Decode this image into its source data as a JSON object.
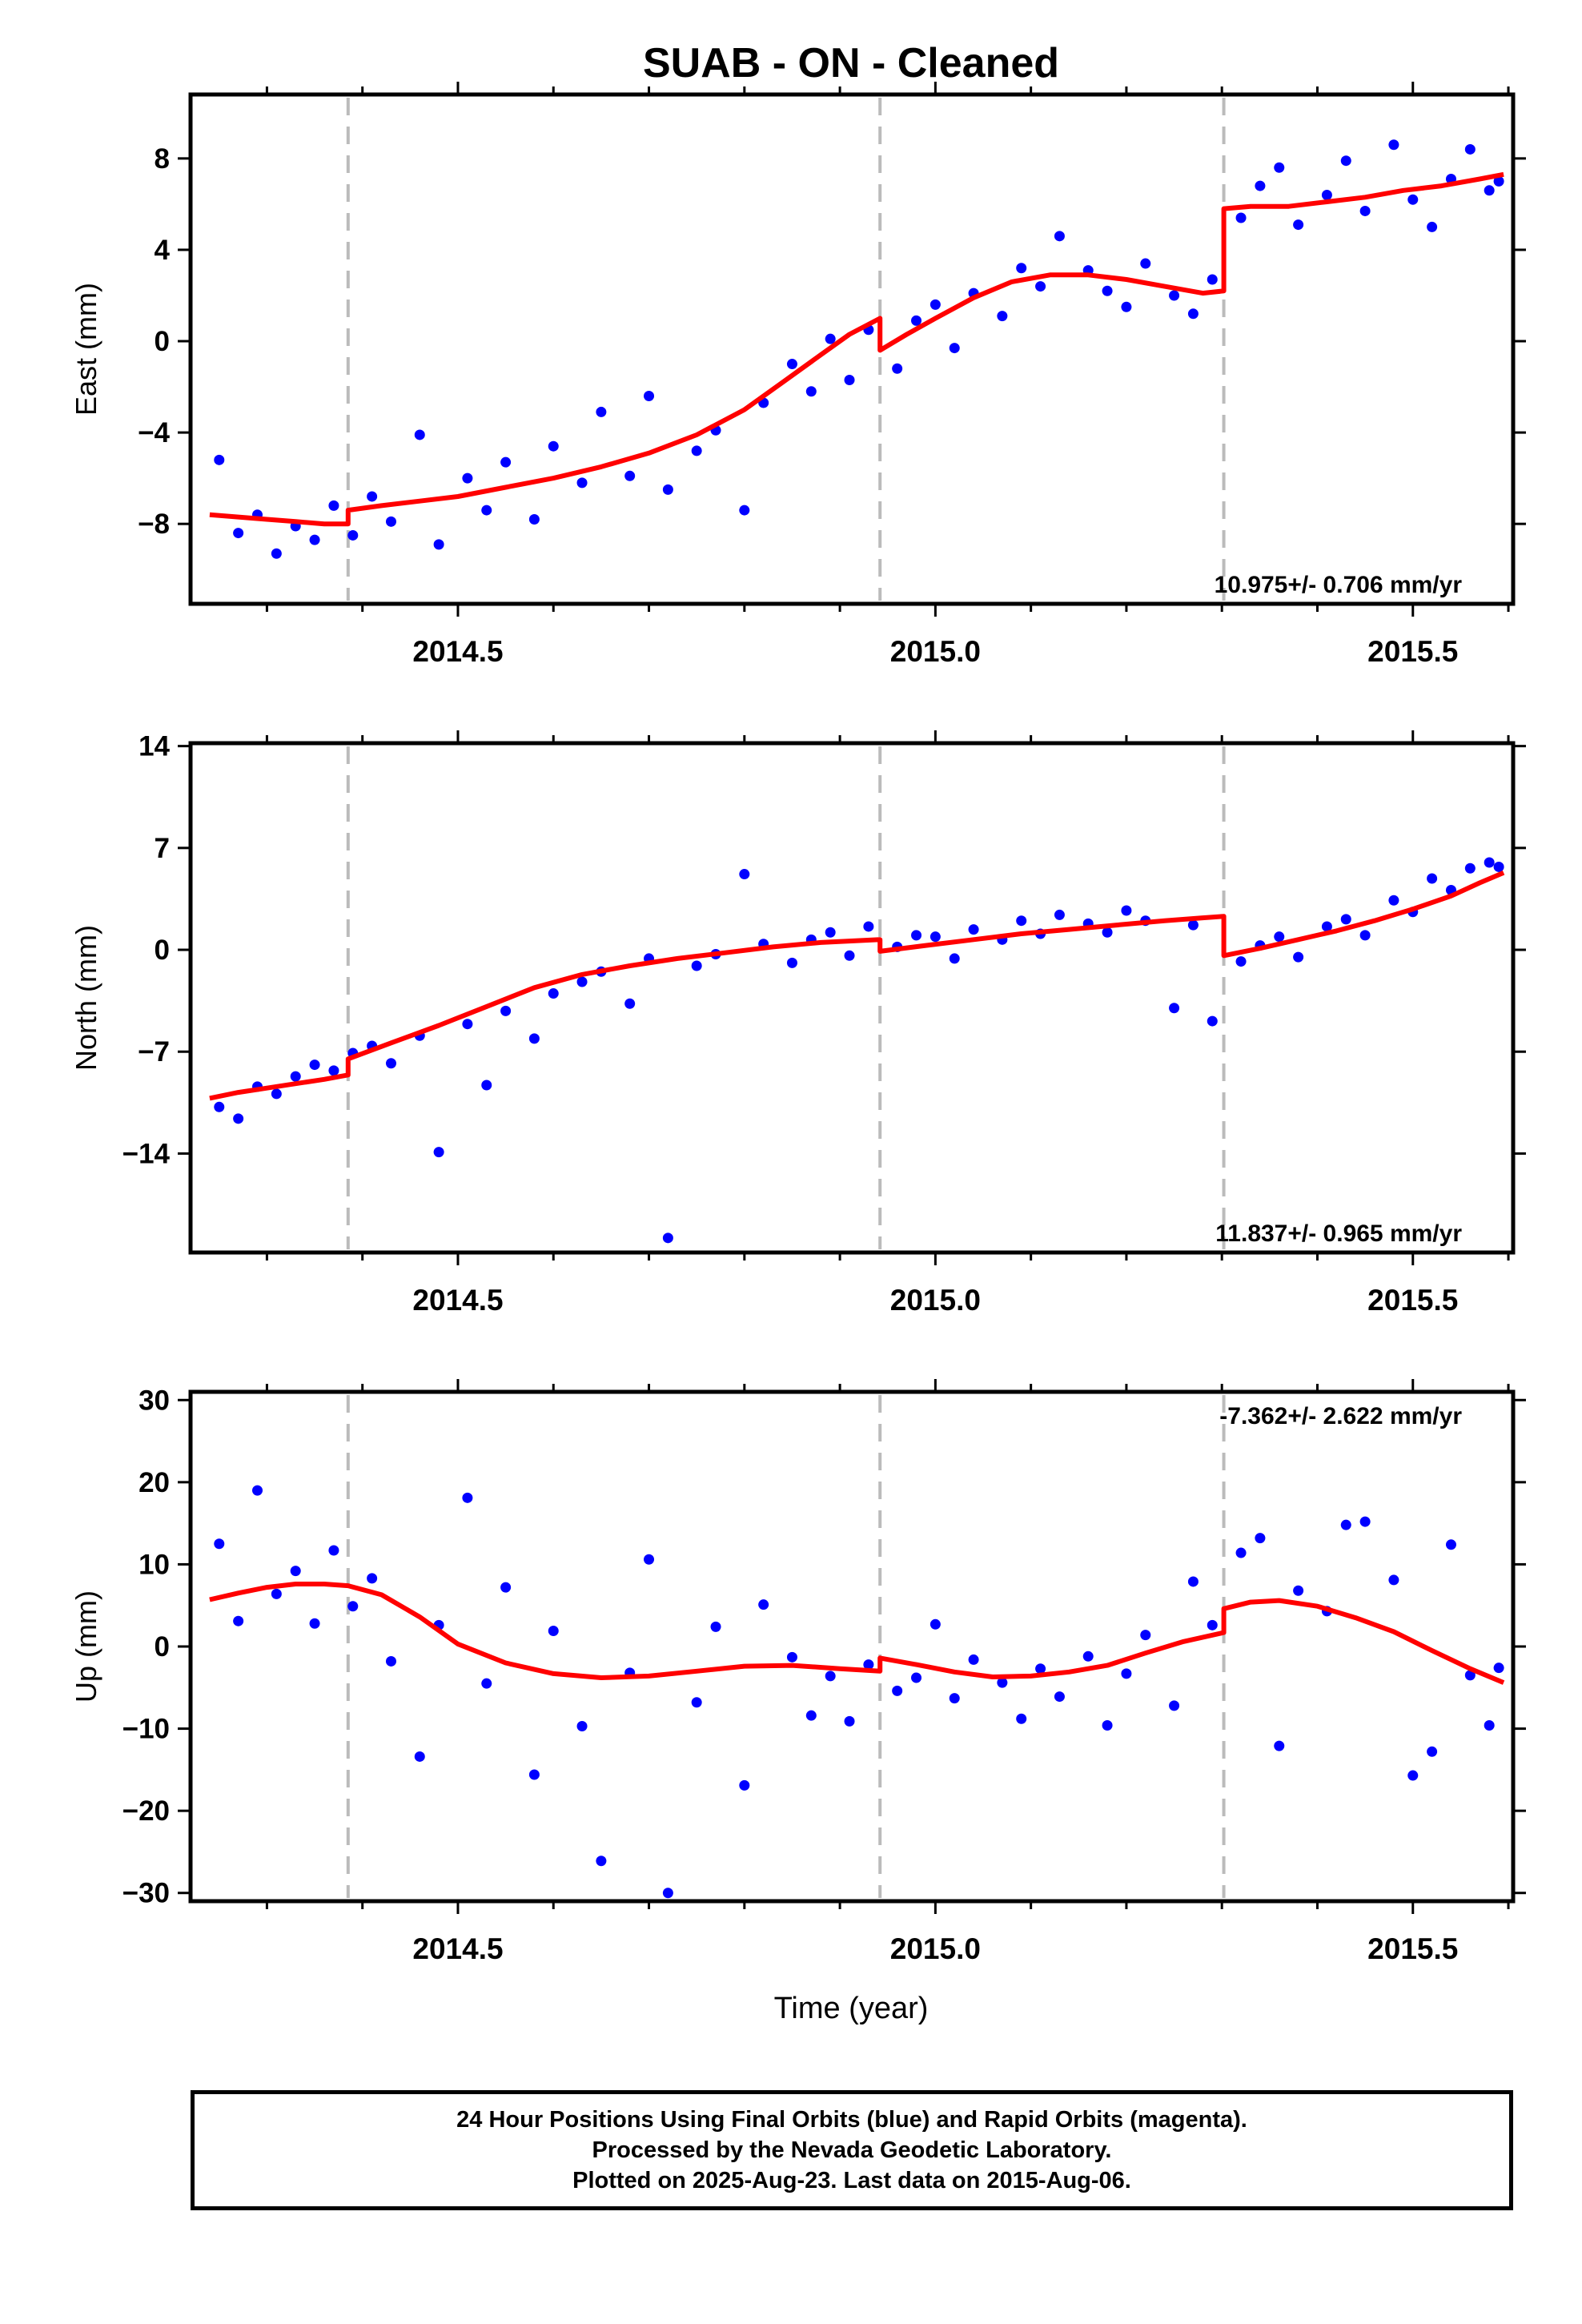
{
  "colors": {
    "final_orbits": "#0000ff",
    "model": "#ff0000",
    "event": "#bbbbbb",
    "frame": "#000000"
  },
  "chart_data": [
    {
      "type": "scatter",
      "title": "SUAB  - ON - Cleaned",
      "xlabel": "",
      "ylabel": "East (mm)",
      "xlim": [
        2014.22,
        2015.605
      ],
      "ylim": [
        -11.5,
        10.8
      ],
      "yticks": [
        -8,
        -4,
        0,
        4,
        8
      ],
      "xticks": [
        2014.5,
        2015.0,
        2015.5
      ],
      "xtick_labels": [
        "2014.5",
        "2015.0",
        "2015.5"
      ],
      "annotation": "10.975+/- 0.706 mm/yr",
      "event_lines": [
        2014.385,
        2014.942,
        2015.302
      ],
      "grid": false,
      "series": [
        {
          "kind": "points",
          "x": [
            2014.25,
            2014.27,
            2014.29,
            2014.31,
            2014.33,
            2014.35,
            2014.37,
            2014.39,
            2014.41,
            2014.43,
            2014.46,
            2014.48,
            2014.51,
            2014.53,
            2014.55,
            2014.58,
            2014.6,
            2014.63,
            2014.65,
            2014.68,
            2014.7,
            2014.72,
            2014.75,
            2014.77,
            2014.8,
            2014.82,
            2014.85,
            2014.87,
            2014.89,
            2014.91,
            2014.93,
            2014.96,
            2014.98,
            2015.0,
            2015.02,
            2015.04,
            2015.07,
            2015.09,
            2015.11,
            2015.13,
            2015.16,
            2015.18,
            2015.2,
            2015.22,
            2015.25,
            2015.27,
            2015.29,
            2015.32,
            2015.34,
            2015.36,
            2015.38,
            2015.41,
            2015.43,
            2015.45,
            2015.48,
            2015.5,
            2015.52,
            2015.54,
            2015.56,
            2015.58,
            2015.59
          ],
          "y": [
            -5.2,
            -8.4,
            -7.6,
            -9.3,
            -8.1,
            -8.7,
            -7.2,
            -8.5,
            -6.8,
            -7.9,
            -4.1,
            -8.9,
            -6.0,
            -7.4,
            -5.3,
            -7.8,
            -4.6,
            -6.2,
            -3.1,
            -5.9,
            -2.4,
            -6.5,
            -4.8,
            -3.9,
            -7.4,
            -2.7,
            -1.0,
            -2.2,
            0.1,
            -1.7,
            0.5,
            -1.2,
            0.9,
            1.6,
            -0.3,
            2.1,
            1.1,
            3.2,
            2.4,
            4.6,
            3.1,
            2.2,
            1.5,
            3.4,
            2.0,
            1.2,
            2.7,
            5.4,
            6.8,
            7.6,
            5.1,
            6.4,
            7.9,
            5.7,
            8.6,
            6.2,
            5.0,
            7.1,
            8.4,
            6.6,
            7.0
          ]
        },
        {
          "kind": "model",
          "x": [
            2014.24,
            2014.27,
            2014.3,
            2014.33,
            2014.36,
            2014.385,
            2014.385,
            2014.42,
            2014.46,
            2014.5,
            2014.55,
            2014.6,
            2014.65,
            2014.7,
            2014.75,
            2014.8,
            2014.84,
            2014.88,
            2014.91,
            2014.942,
            2014.942,
            2014.97,
            2015.0,
            2015.04,
            2015.08,
            2015.12,
            2015.16,
            2015.2,
            2015.24,
            2015.28,
            2015.302,
            2015.302,
            2015.33,
            2015.37,
            2015.41,
            2015.45,
            2015.49,
            2015.53,
            2015.57,
            2015.595
          ],
          "y": [
            -7.6,
            -7.7,
            -7.8,
            -7.9,
            -8.0,
            -8.0,
            -7.4,
            -7.2,
            -7.0,
            -6.8,
            -6.4,
            -6.0,
            -5.5,
            -4.9,
            -4.1,
            -3.0,
            -1.8,
            -0.6,
            0.3,
            1.0,
            -0.4,
            0.3,
            1.0,
            1.9,
            2.6,
            2.9,
            2.9,
            2.7,
            2.4,
            2.1,
            2.2,
            5.8,
            5.9,
            5.9,
            6.1,
            6.3,
            6.6,
            6.8,
            7.1,
            7.3
          ]
        }
      ]
    },
    {
      "type": "scatter",
      "title": "",
      "xlabel": "",
      "ylabel": "North (mm)",
      "xlim": [
        2014.22,
        2015.605
      ],
      "ylim": [
        -20.8,
        14.2
      ],
      "yticks": [
        -14,
        -7,
        0,
        7,
        14
      ],
      "xticks": [
        2014.5,
        2015.0,
        2015.5
      ],
      "xtick_labels": [
        "2014.5",
        "2015.0",
        "2015.5"
      ],
      "annotation": "11.837+/- 0.965 mm/yr",
      "event_lines": [
        2014.385,
        2014.942,
        2015.302
      ],
      "grid": false,
      "series": [
        {
          "kind": "points",
          "x": [
            2014.25,
            2014.27,
            2014.29,
            2014.31,
            2014.33,
            2014.35,
            2014.37,
            2014.39,
            2014.41,
            2014.43,
            2014.46,
            2014.48,
            2014.51,
            2014.53,
            2014.55,
            2014.58,
            2014.6,
            2014.63,
            2014.65,
            2014.68,
            2014.7,
            2014.72,
            2014.75,
            2014.77,
            2014.8,
            2014.82,
            2014.85,
            2014.87,
            2014.89,
            2014.91,
            2014.93,
            2014.96,
            2014.98,
            2015.0,
            2015.02,
            2015.04,
            2015.07,
            2015.09,
            2015.11,
            2015.13,
            2015.16,
            2015.18,
            2015.2,
            2015.22,
            2015.25,
            2015.27,
            2015.29,
            2015.32,
            2015.34,
            2015.36,
            2015.38,
            2015.41,
            2015.43,
            2015.45,
            2015.48,
            2015.5,
            2015.52,
            2015.54,
            2015.56,
            2015.58,
            2015.59
          ],
          "y": [
            -10.8,
            -11.6,
            -9.4,
            -9.9,
            -8.7,
            -7.9,
            -8.3,
            -7.1,
            -6.6,
            -7.8,
            -5.9,
            -13.9,
            -5.1,
            -9.3,
            -4.2,
            -6.1,
            -3.0,
            -2.2,
            -1.5,
            -3.7,
            -0.6,
            -19.8,
            -1.1,
            -0.3,
            5.2,
            0.4,
            -0.9,
            0.7,
            1.2,
            -0.4,
            1.6,
            0.2,
            1.0,
            0.9,
            -0.6,
            1.4,
            0.7,
            2.0,
            1.1,
            2.4,
            1.8,
            1.2,
            2.7,
            2.0,
            -4.0,
            1.7,
            -4.9,
            -0.8,
            0.3,
            0.9,
            -0.5,
            1.6,
            2.1,
            1.0,
            3.4,
            2.6,
            4.9,
            4.1,
            5.6,
            6.0,
            5.7
          ]
        },
        {
          "kind": "model",
          "x": [
            2014.24,
            2014.27,
            2014.3,
            2014.33,
            2014.36,
            2014.385,
            2014.385,
            2014.43,
            2014.48,
            2014.53,
            2014.58,
            2014.63,
            2014.68,
            2014.73,
            2014.78,
            2014.83,
            2014.88,
            2014.942,
            2014.942,
            2014.99,
            2015.04,
            2015.09,
            2015.14,
            2015.19,
            2015.24,
            2015.28,
            2015.302,
            2015.302,
            2015.34,
            2015.38,
            2015.42,
            2015.46,
            2015.5,
            2015.54,
            2015.57,
            2015.595
          ],
          "y": [
            -10.2,
            -9.8,
            -9.5,
            -9.2,
            -8.9,
            -8.6,
            -7.5,
            -6.4,
            -5.2,
            -3.9,
            -2.6,
            -1.7,
            -1.1,
            -0.6,
            -0.2,
            0.2,
            0.5,
            0.7,
            -0.1,
            0.3,
            0.7,
            1.1,
            1.4,
            1.7,
            2.0,
            2.2,
            2.3,
            -0.4,
            0.1,
            0.7,
            1.3,
            2.0,
            2.8,
            3.7,
            4.6,
            5.3
          ]
        }
      ]
    },
    {
      "type": "scatter",
      "title": "",
      "xlabel": "Time (year)",
      "ylabel": "Up (mm)",
      "xlim": [
        2014.22,
        2015.605
      ],
      "ylim": [
        -31,
        31
      ],
      "yticks": [
        -30,
        -20,
        -10,
        0,
        10,
        20,
        30
      ],
      "xticks": [
        2014.5,
        2015.0,
        2015.5
      ],
      "xtick_labels": [
        "2014.5",
        "2015.0",
        "2015.5"
      ],
      "annotation": "-7.362+/- 2.622 mm/yr",
      "event_lines": [
        2014.385,
        2014.942,
        2015.302
      ],
      "grid": false,
      "series": [
        {
          "kind": "points",
          "x": [
            2014.25,
            2014.27,
            2014.29,
            2014.31,
            2014.33,
            2014.35,
            2014.37,
            2014.39,
            2014.41,
            2014.43,
            2014.46,
            2014.48,
            2014.51,
            2014.53,
            2014.55,
            2014.58,
            2014.6,
            2014.63,
            2014.65,
            2014.68,
            2014.7,
            2014.72,
            2014.75,
            2014.77,
            2014.8,
            2014.82,
            2014.85,
            2014.87,
            2014.89,
            2014.91,
            2014.93,
            2014.96,
            2014.98,
            2015.0,
            2015.02,
            2015.04,
            2015.07,
            2015.09,
            2015.11,
            2015.13,
            2015.16,
            2015.18,
            2015.2,
            2015.22,
            2015.25,
            2015.27,
            2015.29,
            2015.32,
            2015.34,
            2015.36,
            2015.38,
            2015.41,
            2015.43,
            2015.45,
            2015.48,
            2015.5,
            2015.52,
            2015.54,
            2015.56,
            2015.58,
            2015.59
          ],
          "y": [
            12.5,
            3.1,
            19.0,
            6.4,
            9.2,
            2.8,
            11.7,
            4.9,
            8.3,
            -1.8,
            -13.4,
            2.6,
            18.1,
            -4.5,
            7.2,
            -15.6,
            1.9,
            -9.7,
            -26.1,
            -3.2,
            10.6,
            -30.0,
            -6.8,
            2.4,
            -16.9,
            5.1,
            -1.3,
            -8.4,
            -3.6,
            -9.1,
            -2.2,
            -5.4,
            -3.8,
            2.7,
            -6.3,
            -1.6,
            -4.4,
            -8.8,
            -2.7,
            -6.1,
            -1.2,
            -9.6,
            -3.3,
            1.4,
            -7.2,
            7.9,
            2.6,
            11.4,
            13.2,
            -12.1,
            6.8,
            4.3,
            14.8,
            15.2,
            8.1,
            -15.7,
            -12.8,
            12.4,
            -3.5,
            -9.6,
            -2.6
          ]
        },
        {
          "kind": "model",
          "x": [
            2014.24,
            2014.27,
            2014.3,
            2014.33,
            2014.36,
            2014.385,
            2014.385,
            2014.42,
            2014.46,
            2014.5,
            2014.55,
            2014.6,
            2014.65,
            2014.7,
            2014.75,
            2014.8,
            2014.85,
            2014.9,
            2014.942,
            2014.942,
            2014.98,
            2015.02,
            2015.06,
            2015.1,
            2015.14,
            2015.18,
            2015.22,
            2015.26,
            2015.302,
            2015.302,
            2015.33,
            2015.36,
            2015.4,
            2015.44,
            2015.48,
            2015.52,
            2015.56,
            2015.595
          ],
          "y": [
            5.7,
            6.5,
            7.2,
            7.6,
            7.6,
            7.4,
            7.4,
            6.3,
            3.6,
            0.3,
            -2.0,
            -3.3,
            -3.8,
            -3.6,
            -3.0,
            -2.4,
            -2.3,
            -2.7,
            -3.0,
            -1.4,
            -2.2,
            -3.1,
            -3.7,
            -3.6,
            -3.1,
            -2.3,
            -0.8,
            0.6,
            1.7,
            4.6,
            5.4,
            5.6,
            4.9,
            3.5,
            1.8,
            -0.5,
            -2.7,
            -4.4
          ]
        }
      ]
    }
  ],
  "footer": {
    "line1": "24 Hour Positions Using Final Orbits (blue) and Rapid Orbits (magenta).",
    "line2": "Processed by the Nevada Geodetic Laboratory.",
    "line3": "Plotted on 2025-Aug-23. Last data on 2015-Aug-06."
  }
}
